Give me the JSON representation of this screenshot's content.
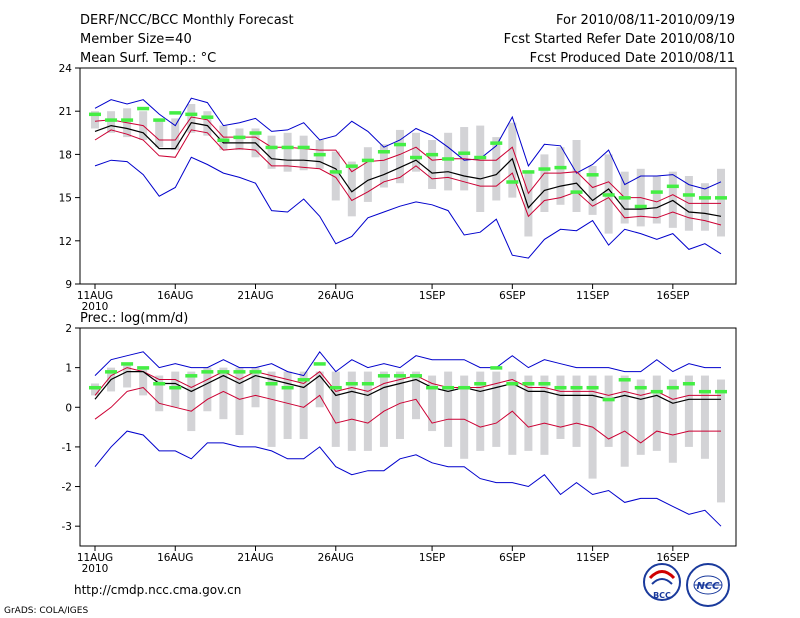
{
  "header": {
    "left": [
      "DERF/NCC/BCC Monthly Forecast",
      "Member Size=40",
      "Mean Surf. Temp.: °C"
    ],
    "right": [
      "For 2010/08/11-2010/09/19",
      "Fcst Started Refer Date 2010/08/10",
      "Fcst Produced Date 2010/08/11"
    ]
  },
  "footer": {
    "url": "http://cmdp.ncc.cma.gov.cn",
    "credit": "GrADS: COLA/IGES",
    "logo_bcc": "BCC",
    "logo_ncc": "NCC"
  },
  "colors": {
    "mean": "#000000",
    "spread": "#cc0033",
    "extreme": "#0000cc",
    "box": "#d3d3d6",
    "median": "#44ee44"
  },
  "chart_data": [
    {
      "type": "line",
      "title": "Mean Surf. Temp.: °C",
      "xlabel": "",
      "ylabel": "°C",
      "ylim": [
        9,
        24
      ],
      "yticks": [
        9,
        12,
        15,
        18,
        21,
        24
      ],
      "xticks": [
        {
          "day": 0,
          "label": "11AUG",
          "sub": "2010"
        },
        {
          "day": 5,
          "label": "16AUG"
        },
        {
          "day": 10,
          "label": "21AUG"
        },
        {
          "day": 15,
          "label": "26AUG"
        },
        {
          "day": 21,
          "label": "1SEP"
        },
        {
          "day": 26,
          "label": "6SEP"
        },
        {
          "day": 31,
          "label": "11SEP"
        },
        {
          "day": 36,
          "label": "16SEP"
        }
      ],
      "x": [
        0,
        1,
        2,
        3,
        4,
        5,
        6,
        7,
        8,
        9,
        10,
        11,
        12,
        13,
        14,
        15,
        16,
        17,
        18,
        19,
        20,
        21,
        22,
        23,
        24,
        25,
        26,
        27,
        28,
        29,
        30,
        31,
        32,
        33,
        34,
        35,
        36,
        37,
        38,
        39
      ],
      "series": [
        {
          "name": "max",
          "role": "extreme",
          "values": [
            21.2,
            21.8,
            21.5,
            21.8,
            20.8,
            20.0,
            21.9,
            21.6,
            20.0,
            20.2,
            20.5,
            19.6,
            19.7,
            20.2,
            19.0,
            19.3,
            20.3,
            19.6,
            18.5,
            19.0,
            19.8,
            19.3,
            18.5,
            17.6,
            17.7,
            18.6,
            20.6,
            17.2,
            18.7,
            18.6,
            16.7,
            17.3,
            18.3,
            15.9,
            16.5,
            16.5,
            16.6,
            15.9,
            15.6,
            16.1
          ]
        },
        {
          "name": "upper",
          "role": "spread",
          "values": [
            20.3,
            20.4,
            20.2,
            20.0,
            19.0,
            19.0,
            20.6,
            20.4,
            19.2,
            19.2,
            19.2,
            18.5,
            18.5,
            18.4,
            18.3,
            18.3,
            16.8,
            17.5,
            17.6,
            18.0,
            18.5,
            17.6,
            17.7,
            17.7,
            17.6,
            17.6,
            18.5,
            15.3,
            16.7,
            16.7,
            16.8,
            15.7,
            16.1,
            15.0,
            15.0,
            14.7,
            15.2,
            14.6,
            14.6,
            14.6
          ]
        },
        {
          "name": "mean",
          "role": "mean",
          "values": [
            19.6,
            20.0,
            19.8,
            19.5,
            18.4,
            18.4,
            20.2,
            20.0,
            18.8,
            18.8,
            18.8,
            17.7,
            17.6,
            17.6,
            17.5,
            17.0,
            15.4,
            16.2,
            16.6,
            17.1,
            17.6,
            16.7,
            16.8,
            16.5,
            16.3,
            16.6,
            17.7,
            14.3,
            15.5,
            15.8,
            16.0,
            14.8,
            15.6,
            14.2,
            14.2,
            14.3,
            14.8,
            14.0,
            13.9,
            13.7
          ]
        },
        {
          "name": "lower",
          "role": "spread",
          "values": [
            19.0,
            19.7,
            19.4,
            19.0,
            17.9,
            17.8,
            19.7,
            19.5,
            18.3,
            18.4,
            18.3,
            17.2,
            17.2,
            17.1,
            17.0,
            16.4,
            14.8,
            15.4,
            16.1,
            16.4,
            17.2,
            16.3,
            16.4,
            16.1,
            15.8,
            15.8,
            16.7,
            13.7,
            14.8,
            15.0,
            15.4,
            14.4,
            15.0,
            13.6,
            13.7,
            13.6,
            14.0,
            13.6,
            13.4,
            13.1
          ]
        },
        {
          "name": "min",
          "role": "extreme",
          "values": [
            17.2,
            17.6,
            17.5,
            16.6,
            15.1,
            15.7,
            17.8,
            17.3,
            16.7,
            16.4,
            16.0,
            14.1,
            14.0,
            14.9,
            13.7,
            11.8,
            12.3,
            13.6,
            14.0,
            14.4,
            14.7,
            14.5,
            14.1,
            12.4,
            12.6,
            13.5,
            11.0,
            10.8,
            12.1,
            12.8,
            12.7,
            13.4,
            11.7,
            12.8,
            12.5,
            12.1,
            12.5,
            11.4,
            11.8,
            11.1
          ]
        },
        {
          "name": "box_top",
          "role": "box",
          "values": [
            21.0,
            21.0,
            21.2,
            21.0,
            20.5,
            20.5,
            21.5,
            21.0,
            20.0,
            19.8,
            19.8,
            19.3,
            19.5,
            19.3,
            19.0,
            18.2,
            17.5,
            18.5,
            18.7,
            19.7,
            19.5,
            19.0,
            19.5,
            19.9,
            20.0,
            19.2,
            20.2,
            16.8,
            18.0,
            18.5,
            19.0,
            17.2,
            18.0,
            16.8,
            17.0,
            16.5,
            16.8,
            16.5,
            16.0,
            17.0
          ]
        },
        {
          "name": "box_bottom",
          "role": "box",
          "values": [
            19.8,
            19.5,
            19.2,
            19.0,
            18.5,
            18.3,
            19.5,
            19.3,
            18.3,
            18.3,
            17.8,
            17.0,
            16.8,
            16.9,
            17.0,
            14.8,
            13.7,
            14.7,
            15.7,
            16.0,
            16.8,
            15.6,
            15.5,
            15.5,
            14.0,
            14.8,
            15.0,
            12.3,
            14.0,
            14.5,
            14.0,
            13.8,
            12.5,
            13.2,
            13.0,
            13.2,
            12.9,
            12.7,
            12.7,
            12.3
          ]
        },
        {
          "name": "median",
          "role": "median",
          "values": [
            20.8,
            20.4,
            20.4,
            21.2,
            20.4,
            20.9,
            20.8,
            20.6,
            19.0,
            19.2,
            19.5,
            18.5,
            18.5,
            18.5,
            18.0,
            16.8,
            17.2,
            17.6,
            18.2,
            18.7,
            17.8,
            18.0,
            17.7,
            18.1,
            17.8,
            18.8,
            16.1,
            16.8,
            17.0,
            17.1,
            15.4,
            16.6,
            15.2,
            15.0,
            14.4,
            15.4,
            15.8,
            15.2,
            15.0,
            15.0
          ]
        }
      ]
    },
    {
      "type": "line",
      "title": "Prec.: log(mm/d)",
      "xlabel": "",
      "ylabel": "log(mm/d)",
      "ylim": [
        -3.5,
        2
      ],
      "yticks": [
        -3,
        -2,
        -1,
        0,
        1,
        2
      ],
      "xticks": [
        {
          "day": 0,
          "label": "11AUG",
          "sub": "2010"
        },
        {
          "day": 5,
          "label": "16AUG"
        },
        {
          "day": 10,
          "label": "21AUG"
        },
        {
          "day": 15,
          "label": "26AUG"
        },
        {
          "day": 21,
          "label": "1SEP"
        },
        {
          "day": 26,
          "label": "6SEP"
        },
        {
          "day": 31,
          "label": "11SEP"
        },
        {
          "day": 36,
          "label": "16SEP"
        }
      ],
      "x": [
        0,
        1,
        2,
        3,
        4,
        5,
        6,
        7,
        8,
        9,
        10,
        11,
        12,
        13,
        14,
        15,
        16,
        17,
        18,
        19,
        20,
        21,
        22,
        23,
        24,
        25,
        26,
        27,
        28,
        29,
        30,
        31,
        32,
        33,
        34,
        35,
        36,
        37,
        38,
        39
      ],
      "series": [
        {
          "name": "max",
          "role": "extreme",
          "values": [
            0.8,
            1.2,
            1.3,
            1.4,
            1.0,
            1.1,
            1.0,
            1.0,
            1.2,
            1.0,
            1.0,
            1.1,
            0.9,
            0.8,
            1.4,
            0.9,
            1.2,
            1.0,
            1.1,
            1.0,
            1.3,
            1.2,
            1.2,
            1.2,
            1.0,
            1.0,
            1.3,
            1.0,
            1.2,
            1.1,
            1.0,
            1.0,
            1.0,
            0.9,
            0.9,
            1.2,
            0.9,
            1.1,
            1.0,
            1.0
          ]
        },
        {
          "name": "upper",
          "role": "spread",
          "values": [
            0.3,
            0.8,
            1.0,
            0.9,
            0.7,
            0.7,
            0.5,
            0.7,
            0.9,
            0.7,
            0.9,
            0.8,
            0.7,
            0.6,
            0.9,
            0.4,
            0.5,
            0.4,
            0.6,
            0.7,
            0.8,
            0.6,
            0.5,
            0.5,
            0.5,
            0.6,
            0.7,
            0.5,
            0.5,
            0.4,
            0.4,
            0.4,
            0.3,
            0.4,
            0.3,
            0.4,
            0.2,
            0.3,
            0.3,
            0.3
          ]
        },
        {
          "name": "mean",
          "role": "mean",
          "values": [
            0.2,
            0.7,
            0.9,
            0.9,
            0.6,
            0.6,
            0.4,
            0.6,
            0.8,
            0.6,
            0.8,
            0.7,
            0.6,
            0.5,
            0.8,
            0.3,
            0.4,
            0.3,
            0.5,
            0.6,
            0.7,
            0.5,
            0.4,
            0.5,
            0.4,
            0.5,
            0.6,
            0.4,
            0.4,
            0.3,
            0.3,
            0.3,
            0.2,
            0.3,
            0.2,
            0.3,
            0.1,
            0.2,
            0.2,
            0.2
          ]
        },
        {
          "name": "lower",
          "role": "spread",
          "values": [
            -0.3,
            0.0,
            0.4,
            0.5,
            0.1,
            0.0,
            -0.1,
            0.2,
            0.4,
            0.2,
            0.3,
            0.2,
            0.1,
            0.0,
            0.3,
            -0.4,
            -0.3,
            -0.4,
            -0.1,
            0.1,
            0.2,
            -0.4,
            -0.3,
            -0.3,
            -0.5,
            -0.4,
            -0.1,
            -0.5,
            -0.4,
            -0.5,
            -0.4,
            -0.5,
            -0.8,
            -0.6,
            -0.9,
            -0.6,
            -0.7,
            -0.6,
            -0.6,
            -0.6
          ]
        },
        {
          "name": "min",
          "role": "extreme",
          "values": [
            -1.5,
            -1.0,
            -0.6,
            -0.7,
            -1.1,
            -1.1,
            -1.3,
            -0.9,
            -0.9,
            -1.0,
            -1.0,
            -1.1,
            -1.3,
            -1.3,
            -1.0,
            -1.5,
            -1.7,
            -1.6,
            -1.6,
            -1.3,
            -1.2,
            -1.4,
            -1.5,
            -1.5,
            -1.8,
            -1.9,
            -1.9,
            -2.0,
            -1.7,
            -2.2,
            -1.9,
            -2.2,
            -2.1,
            -2.4,
            -2.3,
            -2.3,
            -2.5,
            -2.7,
            -2.6,
            -3.0
          ]
        },
        {
          "name": "box_top",
          "role": "box",
          "values": [
            0.6,
            1.0,
            1.1,
            1.0,
            0.8,
            0.9,
            0.9,
            1.0,
            1.0,
            1.0,
            1.0,
            0.9,
            0.9,
            0.9,
            0.9,
            0.9,
            0.9,
            0.9,
            0.9,
            0.9,
            0.9,
            0.8,
            0.9,
            0.8,
            0.9,
            0.9,
            0.9,
            0.8,
            0.8,
            0.8,
            0.8,
            0.8,
            0.8,
            0.8,
            0.7,
            0.8,
            0.7,
            0.8,
            0.8,
            0.7
          ]
        },
        {
          "name": "box_bottom",
          "role": "box",
          "values": [
            0.3,
            0.4,
            0.5,
            0.3,
            -0.1,
            0.0,
            -0.6,
            -0.1,
            -0.3,
            -0.7,
            0.0,
            -1.0,
            -0.8,
            -0.8,
            0.0,
            -1.0,
            -1.1,
            -1.1,
            -1.0,
            -0.8,
            -0.3,
            -0.6,
            -1.0,
            -1.3,
            -1.1,
            -1.0,
            -1.2,
            -1.1,
            -1.2,
            -0.8,
            -1.0,
            -1.8,
            -1.0,
            -1.5,
            -1.2,
            -1.1,
            -1.4,
            -1.0,
            -1.3,
            -2.4
          ]
        },
        {
          "name": "median",
          "role": "median",
          "values": [
            0.5,
            0.9,
            1.1,
            1.0,
            0.6,
            0.5,
            0.8,
            0.9,
            0.9,
            0.9,
            0.9,
            0.6,
            0.5,
            0.7,
            1.1,
            0.5,
            0.6,
            0.6,
            0.8,
            0.8,
            0.8,
            0.5,
            0.5,
            0.5,
            0.6,
            1.0,
            0.6,
            0.6,
            0.6,
            0.5,
            0.5,
            0.5,
            0.2,
            0.7,
            0.5,
            0.4,
            0.5,
            0.6,
            0.4,
            0.4
          ]
        }
      ]
    }
  ]
}
